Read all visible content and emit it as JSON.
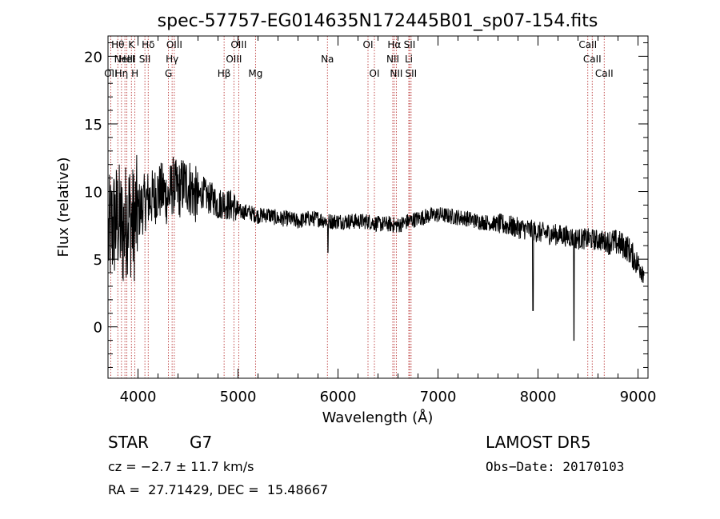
{
  "chart_data": {
    "type": "line",
    "title": "spec-57757-EG014635N172445B01_sp07-154.fits",
    "xlabel": "Wavelength (Å)",
    "ylabel": "Flux (relative)",
    "xlim": [
      3700,
      9100
    ],
    "ylim": [
      -3.8,
      21.5
    ],
    "xticks": [
      4000,
      5000,
      6000,
      7000,
      8000,
      9000
    ],
    "yticks": [
      0,
      5,
      10,
      15,
      20
    ],
    "grid": false,
    "line_color": "#000000",
    "marker_color": "#b22222",
    "lines": [
      {
        "label": "OII",
        "wl": 3727,
        "row": 3
      },
      {
        "label": "Hθ",
        "wl": 3798,
        "row": 1
      },
      {
        "label": "Hη",
        "wl": 3835,
        "row": 3
      },
      {
        "label": "NeIII",
        "wl": 3869,
        "row": 2
      },
      {
        "label": "K",
        "wl": 3934,
        "row": 1
      },
      {
        "label": "HeI",
        "wl": 3889,
        "row": 2
      },
      {
        "label": "H",
        "wl": 3969,
        "row": 3
      },
      {
        "label": "SII",
        "wl": 4069,
        "row": 2
      },
      {
        "label": "Hδ",
        "wl": 4102,
        "row": 1
      },
      {
        "label": "G",
        "wl": 4305,
        "row": 3
      },
      {
        "label": "Hγ",
        "wl": 4341,
        "row": 2
      },
      {
        "label": "OIII",
        "wl": 4363,
        "row": 1
      },
      {
        "label": "Hβ",
        "wl": 4861,
        "row": 3
      },
      {
        "label": "OIII",
        "wl": 4959,
        "row": 2
      },
      {
        "label": "OIII",
        "wl": 5007,
        "row": 1
      },
      {
        "label": "Mg",
        "wl": 5175,
        "row": 3
      },
      {
        "label": "Na",
        "wl": 5894,
        "row": 2
      },
      {
        "label": "OI",
        "wl": 6300,
        "row": 1
      },
      {
        "label": "OI",
        "wl": 6364,
        "row": 3
      },
      {
        "label": "NII",
        "wl": 6548,
        "row": 2
      },
      {
        "label": "Hα",
        "wl": 6563,
        "row": 1
      },
      {
        "label": "NII",
        "wl": 6583,
        "row": 3
      },
      {
        "label": "Li",
        "wl": 6708,
        "row": 2
      },
      {
        "label": "SII",
        "wl": 6716,
        "row": 1
      },
      {
        "label": "SII",
        "wl": 6731,
        "row": 3
      },
      {
        "label": "CaII",
        "wl": 8498,
        "row": 1
      },
      {
        "label": "CaII",
        "wl": 8542,
        "row": 2
      },
      {
        "label": "CaII",
        "wl": 8662,
        "row": 3
      }
    ],
    "series": [
      {
        "x": [
          3700,
          3750,
          3800,
          3850,
          3900,
          3950,
          4000,
          4050,
          4100,
          4150,
          4200,
          4250,
          4300,
          4350,
          4400,
          4450,
          4500,
          4550,
          4600,
          4650,
          4700,
          4750,
          4800,
          4850,
          4900,
          4950,
          5000,
          5100,
          5200,
          5300,
          5400,
          5500,
          5600,
          5700,
          5800,
          5900,
          6000,
          6100,
          6200,
          6300,
          6400,
          6500,
          6600,
          6700,
          6800,
          6900,
          7000,
          7100,
          7200,
          7300,
          7400,
          7500,
          7600,
          7700,
          7800,
          7900,
          8000,
          8100,
          8200,
          8300,
          8400,
          8500,
          8600,
          8700,
          8800,
          8900,
          9000,
          9050
        ],
        "y": [
          6.5,
          7.5,
          8,
          7,
          8.5,
          7.5,
          8.5,
          9,
          9.5,
          9.5,
          10,
          10,
          9.5,
          10.5,
          10,
          10.5,
          10.5,
          10,
          9.5,
          10,
          9.5,
          9.5,
          9,
          9.2,
          9,
          9,
          8.5,
          8.5,
          8.2,
          8.3,
          8,
          8,
          7.8,
          8,
          8,
          7.8,
          7.8,
          7.8,
          7.8,
          7.8,
          7.6,
          7.6,
          7.5,
          7.8,
          8,
          8.2,
          8.3,
          8.2,
          8.1,
          8,
          7.8,
          7.7,
          7.6,
          7.5,
          7.3,
          7.2,
          7.0,
          6.9,
          6.8,
          6.7,
          6.5,
          6.5,
          6.4,
          6.3,
          6.2,
          5.8,
          4.6,
          4.2
        ]
      }
    ]
  },
  "info": {
    "class_label": "STAR",
    "subclass": "G7",
    "survey": "LAMOST DR5",
    "cz": "cz = −2.7 ± 11.7 km/s",
    "obs_date": "Obs−Date: 20170103",
    "coords": "RA =  27.71429, DEC =  15.48667"
  }
}
